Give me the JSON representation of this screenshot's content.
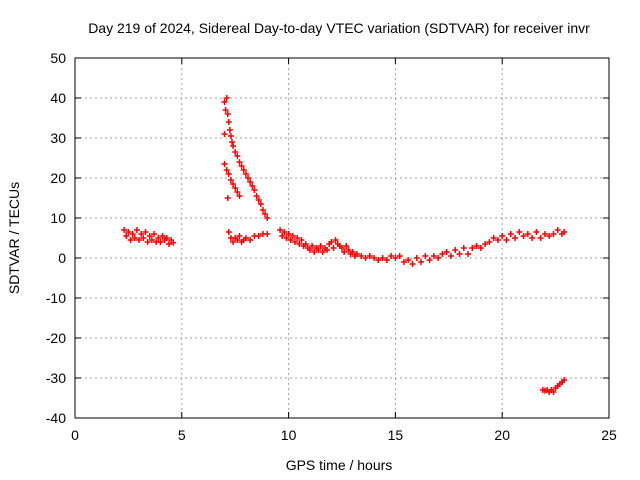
{
  "chart_data": {
    "type": "scatter",
    "title": "Day 219 of 2024, Sidereal Day-to-day VTEC variation (SDTVAR) for receiver invr",
    "xlabel": "GPS time / hours",
    "ylabel": "SDTVAR / TECUs",
    "xlim": [
      0,
      25
    ],
    "ylim": [
      -40,
      50
    ],
    "xticks": [
      0,
      5,
      10,
      15,
      20,
      25
    ],
    "yticks": [
      -40,
      -30,
      -20,
      -10,
      0,
      10,
      20,
      30,
      40,
      50
    ],
    "grid": true,
    "marker": "+",
    "color": "#ff0000",
    "series": [
      {
        "name": "SDTVAR",
        "points": [
          [
            2.3,
            7.0
          ],
          [
            2.4,
            5.5
          ],
          [
            2.5,
            6.5
          ],
          [
            2.6,
            4.5
          ],
          [
            2.7,
            6.0
          ],
          [
            2.8,
            5.0
          ],
          [
            2.9,
            7.0
          ],
          [
            3.0,
            4.5
          ],
          [
            3.1,
            6.0
          ],
          [
            3.2,
            5.0
          ],
          [
            3.3,
            6.5
          ],
          [
            3.4,
            4.0
          ],
          [
            3.5,
            5.5
          ],
          [
            3.6,
            4.5
          ],
          [
            3.7,
            6.0
          ],
          [
            3.8,
            4.0
          ],
          [
            3.9,
            5.0
          ],
          [
            4.0,
            4.0
          ],
          [
            4.1,
            5.5
          ],
          [
            4.2,
            4.5
          ],
          [
            4.3,
            5.0
          ],
          [
            4.4,
            3.5
          ],
          [
            4.5,
            4.5
          ],
          [
            4.6,
            3.8
          ],
          [
            7.0,
            39.0
          ],
          [
            7.05,
            37.0
          ],
          [
            7.1,
            40.0
          ],
          [
            7.15,
            36.0
          ],
          [
            7.2,
            34.0
          ],
          [
            7.25,
            32.0
          ],
          [
            7.3,
            30.5
          ],
          [
            7.35,
            29.0
          ],
          [
            7.4,
            28.0
          ],
          [
            7.5,
            26.5
          ],
          [
            7.6,
            25.5
          ],
          [
            7.7,
            24.0
          ],
          [
            7.8,
            23.0
          ],
          [
            7.9,
            22.0
          ],
          [
            8.0,
            21.0
          ],
          [
            8.1,
            20.0
          ],
          [
            8.2,
            19.0
          ],
          [
            8.3,
            18.0
          ],
          [
            8.4,
            17.0
          ],
          [
            8.5,
            15.5
          ],
          [
            8.6,
            14.5
          ],
          [
            8.7,
            13.5
          ],
          [
            8.8,
            12.0
          ],
          [
            8.9,
            11.0
          ],
          [
            9.0,
            10.0
          ],
          [
            7.0,
            31.0
          ],
          [
            7.0,
            23.5
          ],
          [
            7.1,
            22.0
          ],
          [
            7.2,
            21.0
          ],
          [
            7.3,
            19.5
          ],
          [
            7.4,
            18.5
          ],
          [
            7.5,
            17.5
          ],
          [
            7.6,
            16.5
          ],
          [
            7.7,
            15.5
          ],
          [
            7.15,
            15.0
          ],
          [
            7.2,
            6.5
          ],
          [
            7.3,
            5.0
          ],
          [
            7.4,
            4.0
          ],
          [
            7.5,
            5.0
          ],
          [
            7.6,
            4.5
          ],
          [
            7.7,
            5.5
          ],
          [
            7.8,
            4.0
          ],
          [
            7.9,
            4.5
          ],
          [
            8.0,
            5.0
          ],
          [
            8.2,
            4.5
          ],
          [
            8.4,
            5.5
          ],
          [
            8.6,
            5.5
          ],
          [
            8.8,
            6.0
          ],
          [
            9.0,
            6.0
          ],
          [
            9.6,
            7.0
          ],
          [
            9.7,
            5.5
          ],
          [
            9.8,
            6.5
          ],
          [
            9.9,
            5.0
          ],
          [
            10.0,
            6.0
          ],
          [
            10.1,
            4.5
          ],
          [
            10.2,
            5.5
          ],
          [
            10.3,
            4.0
          ],
          [
            10.4,
            5.0
          ],
          [
            10.5,
            3.5
          ],
          [
            10.6,
            4.5
          ],
          [
            10.7,
            3.0
          ],
          [
            10.8,
            3.5
          ],
          [
            10.9,
            2.5
          ],
          [
            11.0,
            2.0
          ],
          [
            11.1,
            3.0
          ],
          [
            11.2,
            1.5
          ],
          [
            11.3,
            2.5
          ],
          [
            11.4,
            2.0
          ],
          [
            11.5,
            3.0
          ],
          [
            11.6,
            1.5
          ],
          [
            11.7,
            2.5
          ],
          [
            11.8,
            2.0
          ],
          [
            11.9,
            3.5
          ],
          [
            12.0,
            4.0
          ],
          [
            12.1,
            2.5
          ],
          [
            12.2,
            4.5
          ],
          [
            12.3,
            3.5
          ],
          [
            12.4,
            3.0
          ],
          [
            12.5,
            2.5
          ],
          [
            12.6,
            1.5
          ],
          [
            12.7,
            3.0
          ],
          [
            12.8,
            2.0
          ],
          [
            12.9,
            1.0
          ],
          [
            13.0,
            1.5
          ],
          [
            13.1,
            0.5
          ],
          [
            13.2,
            1.0
          ],
          [
            13.4,
            0.5
          ],
          [
            13.6,
            0.0
          ],
          [
            13.8,
            0.5
          ],
          [
            14.0,
            0.0
          ],
          [
            14.2,
            -0.5
          ],
          [
            14.4,
            0.0
          ],
          [
            14.6,
            -0.5
          ],
          [
            14.8,
            0.5
          ],
          [
            15.0,
            0.0
          ],
          [
            15.2,
            0.5
          ],
          [
            15.4,
            -1.0
          ],
          [
            15.6,
            -0.5
          ],
          [
            15.8,
            -1.5
          ],
          [
            16.0,
            0.0
          ],
          [
            16.2,
            -1.0
          ],
          [
            16.4,
            0.5
          ],
          [
            16.6,
            -0.5
          ],
          [
            16.8,
            0.5
          ],
          [
            17.0,
            0.0
          ],
          [
            17.2,
            1.0
          ],
          [
            17.4,
            1.5
          ],
          [
            17.6,
            0.5
          ],
          [
            17.8,
            2.0
          ],
          [
            18.0,
            1.0
          ],
          [
            18.2,
            2.5
          ],
          [
            18.4,
            1.0
          ],
          [
            18.6,
            2.5
          ],
          [
            18.8,
            3.0
          ],
          [
            19.0,
            2.5
          ],
          [
            19.2,
            3.5
          ],
          [
            19.4,
            4.0
          ],
          [
            19.6,
            5.0
          ],
          [
            19.8,
            4.5
          ],
          [
            20.0,
            5.5
          ],
          [
            20.2,
            4.5
          ],
          [
            20.4,
            6.0
          ],
          [
            20.6,
            5.0
          ],
          [
            20.8,
            6.5
          ],
          [
            21.0,
            5.5
          ],
          [
            21.2,
            6.0
          ],
          [
            21.4,
            5.0
          ],
          [
            21.6,
            6.5
          ],
          [
            21.8,
            5.0
          ],
          [
            22.0,
            6.0
          ],
          [
            22.2,
            5.5
          ],
          [
            22.4,
            6.0
          ],
          [
            22.6,
            7.0
          ],
          [
            22.8,
            6.0
          ],
          [
            22.9,
            6.5
          ],
          [
            21.9,
            -33.0
          ],
          [
            22.0,
            -33.2
          ],
          [
            22.1,
            -33.0
          ],
          [
            22.2,
            -33.5
          ],
          [
            22.3,
            -33.0
          ],
          [
            22.4,
            -33.5
          ],
          [
            22.5,
            -32.5
          ],
          [
            22.6,
            -32.0
          ],
          [
            22.7,
            -31.5
          ],
          [
            22.8,
            -31.0
          ],
          [
            22.9,
            -30.5
          ]
        ]
      }
    ]
  }
}
